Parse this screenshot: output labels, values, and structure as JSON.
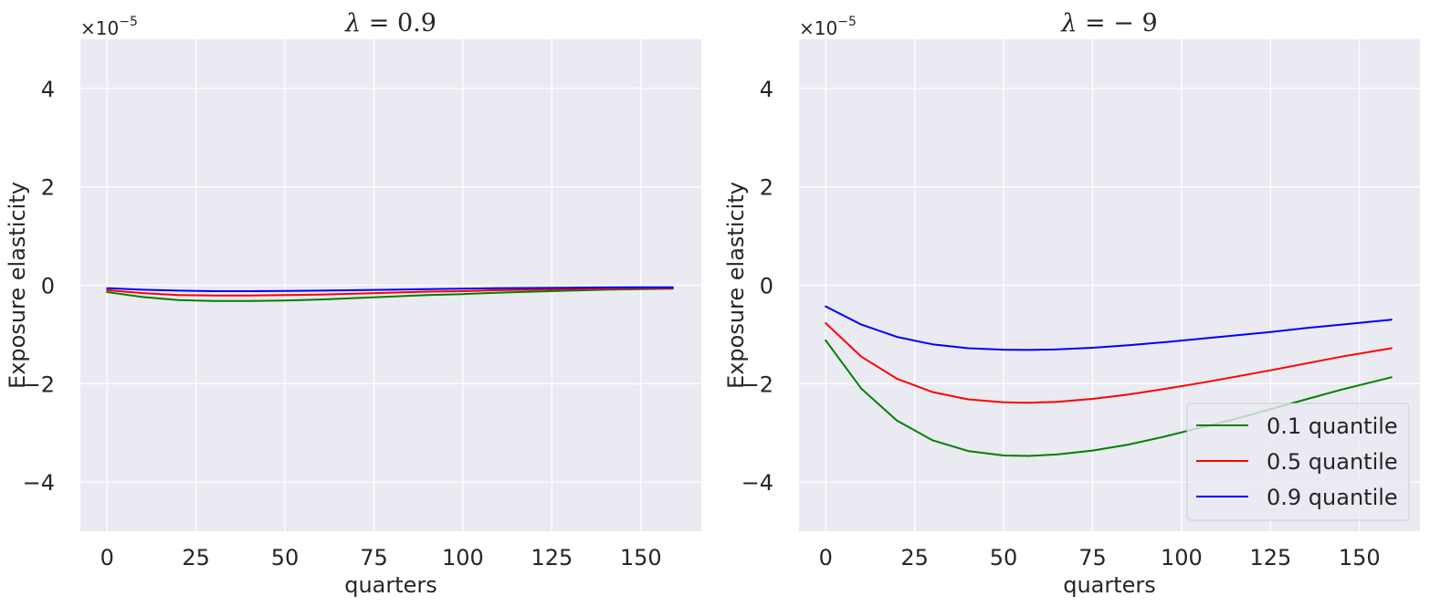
{
  "chart_data": [
    {
      "type": "line",
      "title": "λ = 0.9",
      "title_prefix": "λ",
      "title_value": "= 0.9",
      "xlabel": "quarters",
      "ylabel": "Exposure elasticity",
      "sci_multiplier": "×10",
      "sci_exponent": "−5",
      "xlim": [
        -7.5,
        167
      ],
      "ylim": [
        -5,
        5
      ],
      "xticks": [
        0,
        25,
        50,
        75,
        100,
        125,
        150
      ],
      "xtick_labels": [
        "0",
        "25",
        "50",
        "75",
        "100",
        "125",
        "150"
      ],
      "yticks": [
        -4,
        -2,
        0,
        2,
        4
      ],
      "ytick_labels": [
        "−4",
        "−2",
        "0",
        "2",
        "4"
      ],
      "grid": true,
      "legend": null,
      "series": [
        {
          "name": "0.1 quantile",
          "color": "#008000",
          "x": [
            0,
            10,
            20,
            30,
            40,
            50,
            60,
            70,
            80,
            90,
            100,
            110,
            120,
            130,
            140,
            150,
            159
          ],
          "y": [
            -0.14,
            -0.24,
            -0.3,
            -0.32,
            -0.32,
            -0.31,
            -0.29,
            -0.26,
            -0.23,
            -0.2,
            -0.18,
            -0.15,
            -0.13,
            -0.11,
            -0.09,
            -0.08,
            -0.07
          ]
        },
        {
          "name": "0.5 quantile",
          "color": "#ff0000",
          "x": [
            0,
            10,
            20,
            30,
            40,
            50,
            60,
            70,
            80,
            90,
            100,
            110,
            120,
            130,
            140,
            150,
            159
          ],
          "y": [
            -0.1,
            -0.16,
            -0.2,
            -0.21,
            -0.21,
            -0.2,
            -0.19,
            -0.17,
            -0.15,
            -0.13,
            -0.12,
            -0.1,
            -0.09,
            -0.08,
            -0.07,
            -0.06,
            -0.06
          ]
        },
        {
          "name": "0.9 quantile",
          "color": "#0000ff",
          "x": [
            0,
            10,
            20,
            30,
            40,
            50,
            60,
            70,
            80,
            90,
            100,
            110,
            120,
            130,
            140,
            150,
            159
          ],
          "y": [
            -0.06,
            -0.09,
            -0.11,
            -0.12,
            -0.12,
            -0.115,
            -0.11,
            -0.1,
            -0.09,
            -0.08,
            -0.07,
            -0.06,
            -0.055,
            -0.05,
            -0.045,
            -0.04,
            -0.04
          ]
        }
      ]
    },
    {
      "type": "line",
      "title": "λ = −9",
      "title_prefix": "λ",
      "title_value": "= − 9",
      "xlabel": "quarters",
      "ylabel": "Exposure elasticity",
      "sci_multiplier": "×10",
      "sci_exponent": "−5",
      "xlim": [
        -7.5,
        167
      ],
      "ylim": [
        -5,
        5
      ],
      "xticks": [
        0,
        25,
        50,
        75,
        100,
        125,
        150
      ],
      "xtick_labels": [
        "0",
        "25",
        "50",
        "75",
        "100",
        "125",
        "150"
      ],
      "yticks": [
        -4,
        -2,
        0,
        2,
        4
      ],
      "ytick_labels": [
        "−4",
        "−2",
        "0",
        "2",
        "4"
      ],
      "grid": true,
      "legend": "lower-right",
      "series": [
        {
          "name": "0.1 quantile",
          "color": "#008000",
          "x": [
            0,
            10,
            20,
            30,
            40,
            50,
            57,
            65,
            75,
            85,
            95,
            105,
            115,
            125,
            135,
            145,
            159
          ],
          "y": [
            -1.12,
            -2.1,
            -2.75,
            -3.15,
            -3.37,
            -3.46,
            -3.47,
            -3.44,
            -3.36,
            -3.24,
            -3.08,
            -2.9,
            -2.72,
            -2.52,
            -2.32,
            -2.12,
            -1.87
          ]
        },
        {
          "name": "0.5 quantile",
          "color": "#ff0000",
          "x": [
            0,
            10,
            20,
            30,
            40,
            50,
            57,
            65,
            75,
            85,
            95,
            105,
            115,
            125,
            135,
            145,
            159
          ],
          "y": [
            -0.77,
            -1.45,
            -1.9,
            -2.17,
            -2.32,
            -2.38,
            -2.39,
            -2.37,
            -2.31,
            -2.22,
            -2.11,
            -1.99,
            -1.86,
            -1.73,
            -1.59,
            -1.45,
            -1.28
          ]
        },
        {
          "name": "0.9 quantile",
          "color": "#0000ff",
          "x": [
            0,
            10,
            20,
            30,
            40,
            50,
            57,
            65,
            75,
            85,
            95,
            105,
            115,
            125,
            135,
            145,
            159
          ],
          "y": [
            -0.43,
            -0.8,
            -1.05,
            -1.2,
            -1.28,
            -1.31,
            -1.315,
            -1.305,
            -1.27,
            -1.22,
            -1.16,
            -1.09,
            -1.02,
            -0.95,
            -0.87,
            -0.8,
            -0.7
          ]
        }
      ]
    }
  ]
}
